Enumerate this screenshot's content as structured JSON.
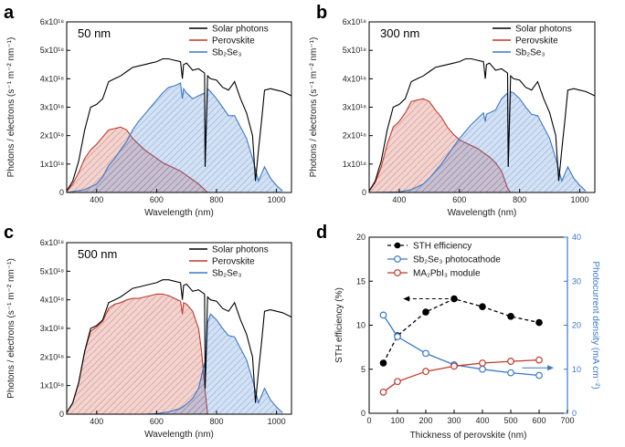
{
  "chart_data": [
    {
      "panel": "a",
      "type": "area",
      "label": "50 nm",
      "xlabel": "Wavelength (nm)",
      "ylabel": "Photons / electrons (s⁻¹ m⁻² nm⁻¹)",
      "xlim": [
        300,
        1050
      ],
      "ylim": [
        0,
        6
      ],
      "xticks": [
        "400",
        "600",
        "800",
        "1000"
      ],
      "yticks": [
        "0",
        "1x10¹⁸",
        "2x10¹⁸",
        "3x10¹⁸",
        "4x10¹⁸",
        "5x10¹⁸",
        "6x10¹⁸"
      ],
      "legend": [
        "Solar photons",
        "Perovskite",
        "Sb₂Se₃"
      ],
      "series": [
        {
          "name": "Solar photons",
          "color": "#000000",
          "kind": "line",
          "x": [
            300,
            320,
            340,
            360,
            380,
            400,
            420,
            440,
            460,
            480,
            500,
            520,
            540,
            560,
            580,
            600,
            620,
            640,
            660,
            680,
            686,
            690,
            700,
            720,
            740,
            760,
            762,
            770,
            780,
            800,
            820,
            840,
            860,
            880,
            900,
            920,
            930,
            940,
            950,
            960,
            980,
            1000,
            1020,
            1050
          ],
          "y": [
            0.05,
            0.4,
            1.1,
            2.2,
            3.0,
            3.1,
            3.3,
            3.9,
            4.0,
            4.1,
            4.25,
            4.4,
            4.45,
            4.5,
            4.55,
            4.6,
            4.7,
            4.7,
            4.65,
            4.6,
            4.0,
            4.5,
            4.55,
            4.3,
            4.35,
            4.2,
            0.9,
            4.1,
            4.0,
            3.95,
            3.7,
            3.6,
            3.9,
            3.3,
            2.8,
            2.0,
            0.4,
            1.5,
            2.5,
            3.6,
            3.65,
            3.6,
            3.55,
            3.4
          ]
        },
        {
          "name": "Perovskite",
          "color": "#c0392b",
          "kind": "area",
          "x": [
            300,
            320,
            340,
            360,
            380,
            400,
            420,
            440,
            460,
            480,
            500,
            520,
            540,
            560,
            580,
            600,
            620,
            640,
            660,
            680,
            700,
            720,
            740,
            760,
            770
          ],
          "y": [
            0.05,
            0.3,
            0.7,
            1.2,
            1.5,
            1.7,
            1.95,
            2.2,
            2.25,
            2.3,
            2.2,
            1.9,
            1.7,
            1.5,
            1.35,
            1.2,
            1.05,
            0.95,
            0.85,
            0.75,
            0.6,
            0.45,
            0.3,
            0.1,
            0
          ]
        },
        {
          "name": "Sb₂Se₃",
          "color": "#3a78c8",
          "kind": "area",
          "x": [
            300,
            360,
            400,
            420,
            440,
            460,
            480,
            500,
            520,
            540,
            560,
            580,
            600,
            620,
            640,
            660,
            680,
            686,
            690,
            700,
            720,
            740,
            760,
            762,
            770,
            780,
            800,
            820,
            840,
            860,
            880,
            900,
            920,
            940,
            960,
            980,
            1000,
            1020
          ],
          "y": [
            0,
            0.1,
            0.3,
            0.55,
            0.95,
            1.2,
            1.5,
            1.8,
            2.2,
            2.5,
            2.75,
            3.0,
            3.25,
            3.5,
            3.7,
            3.75,
            3.85,
            3.3,
            3.65,
            3.5,
            3.3,
            3.4,
            3.5,
            0.9,
            3.65,
            3.55,
            3.3,
            3.0,
            2.7,
            2.7,
            2.3,
            1.9,
            1.2,
            0.4,
            0.9,
            0.5,
            0.25,
            0.05
          ]
        }
      ]
    },
    {
      "panel": "b",
      "type": "area",
      "label": "300 nm",
      "xlabel": "Wavelength (nm)",
      "ylabel": "Photons / electrons (s⁻¹ m⁻² nm⁻¹)",
      "xlim": [
        300,
        1050
      ],
      "ylim": [
        0,
        6
      ],
      "xticks": [
        "400",
        "600",
        "800",
        "1000"
      ],
      "yticks": [
        "0",
        "1x10¹⁸",
        "2x10¹⁸",
        "3x10¹⁸",
        "4x10¹⁸",
        "5x10¹⁸",
        "6x10¹⁸"
      ],
      "legend": [
        "Solar photons",
        "Perovskite",
        "Sb₂Se₃"
      ],
      "series": [
        {
          "name": "Solar photons",
          "color": "#000000",
          "kind": "line",
          "x": [
            300,
            320,
            340,
            360,
            380,
            400,
            420,
            440,
            460,
            480,
            500,
            520,
            540,
            560,
            580,
            600,
            620,
            640,
            660,
            680,
            686,
            690,
            700,
            720,
            740,
            760,
            762,
            770,
            780,
            800,
            820,
            840,
            860,
            880,
            900,
            920,
            930,
            940,
            950,
            960,
            980,
            1000,
            1020,
            1050
          ],
          "y": [
            0.05,
            0.4,
            1.1,
            2.2,
            3.0,
            3.1,
            3.3,
            3.9,
            4.0,
            4.1,
            4.25,
            4.4,
            4.45,
            4.5,
            4.55,
            4.6,
            4.7,
            4.7,
            4.65,
            4.6,
            4.0,
            4.5,
            4.55,
            4.3,
            4.35,
            4.2,
            0.9,
            4.1,
            4.0,
            3.95,
            3.7,
            3.6,
            3.9,
            3.3,
            2.8,
            2.0,
            0.4,
            1.5,
            2.5,
            3.6,
            3.65,
            3.6,
            3.55,
            3.4
          ]
        },
        {
          "name": "Perovskite",
          "color": "#c0392b",
          "kind": "area",
          "x": [
            300,
            320,
            340,
            360,
            380,
            400,
            420,
            440,
            460,
            480,
            500,
            520,
            540,
            560,
            580,
            600,
            620,
            640,
            660,
            680,
            700,
            720,
            740,
            760,
            770
          ],
          "y": [
            0.05,
            0.35,
            0.9,
            1.7,
            2.3,
            2.5,
            2.8,
            3.2,
            3.25,
            3.3,
            3.2,
            2.9,
            2.65,
            2.3,
            2.05,
            1.85,
            1.75,
            1.65,
            1.55,
            1.4,
            1.25,
            1.05,
            0.75,
            0.15,
            0
          ]
        },
        {
          "name": "Sb₂Se₃",
          "color": "#3a78c8",
          "kind": "area",
          "x": [
            300,
            400,
            440,
            480,
            500,
            520,
            540,
            560,
            580,
            600,
            620,
            640,
            660,
            680,
            686,
            690,
            700,
            720,
            740,
            760,
            762,
            770,
            780,
            800,
            820,
            840,
            860,
            880,
            900,
            920,
            940,
            960,
            980,
            1000,
            1020
          ],
          "y": [
            0,
            0.02,
            0.1,
            0.3,
            0.5,
            0.75,
            1.0,
            1.3,
            1.6,
            1.9,
            2.15,
            2.4,
            2.6,
            2.8,
            2.5,
            2.75,
            2.8,
            2.9,
            3.3,
            3.5,
            0.9,
            3.55,
            3.5,
            3.3,
            3.0,
            2.75,
            2.7,
            2.3,
            1.9,
            1.2,
            0.4,
            0.9,
            0.5,
            0.25,
            0.05
          ]
        }
      ]
    },
    {
      "panel": "c",
      "type": "area",
      "label": "500 nm",
      "xlabel": "Wavelength (nm)",
      "ylabel": "Photons / electrons (s⁻¹ m⁻² nm⁻¹)",
      "xlim": [
        300,
        1050
      ],
      "ylim": [
        0,
        6
      ],
      "xticks": [
        "400",
        "600",
        "800",
        "1000"
      ],
      "yticks": [
        "0",
        "1x10¹⁸",
        "2x10¹⁸",
        "3x10¹⁸",
        "4x10¹⁸",
        "5x10¹⁸",
        "6x10¹⁸"
      ],
      "legend": [
        "Solar photons",
        "Perovskite",
        "Sb₂Se₃"
      ],
      "series": [
        {
          "name": "Solar photons",
          "color": "#000000",
          "kind": "line",
          "x": [
            300,
            320,
            340,
            360,
            380,
            400,
            420,
            440,
            460,
            480,
            500,
            520,
            540,
            560,
            580,
            600,
            620,
            640,
            660,
            680,
            686,
            690,
            700,
            720,
            740,
            760,
            762,
            770,
            780,
            800,
            820,
            840,
            860,
            880,
            900,
            920,
            930,
            940,
            950,
            960,
            980,
            1000,
            1020,
            1050
          ],
          "y": [
            0.05,
            0.4,
            1.1,
            2.2,
            3.0,
            3.1,
            3.3,
            3.9,
            4.0,
            4.1,
            4.25,
            4.4,
            4.45,
            4.5,
            4.55,
            4.6,
            4.7,
            4.7,
            4.65,
            4.6,
            4.0,
            4.5,
            4.55,
            4.3,
            4.35,
            4.2,
            0.9,
            4.1,
            4.0,
            3.95,
            3.7,
            3.6,
            3.9,
            3.3,
            2.8,
            2.0,
            0.4,
            1.5,
            2.5,
            3.6,
            3.65,
            3.6,
            3.55,
            3.4
          ]
        },
        {
          "name": "Perovskite",
          "color": "#c0392b",
          "kind": "area",
          "x": [
            300,
            320,
            340,
            360,
            380,
            400,
            420,
            440,
            460,
            480,
            500,
            520,
            540,
            560,
            580,
            600,
            620,
            640,
            660,
            680,
            686,
            690,
            700,
            720,
            740,
            750,
            760,
            770
          ],
          "y": [
            0.05,
            0.4,
            1.1,
            2.2,
            2.9,
            3.05,
            3.25,
            3.7,
            3.85,
            3.9,
            4.0,
            4.05,
            4.05,
            4.1,
            4.15,
            4.2,
            4.2,
            4.15,
            4.05,
            3.95,
            3.5,
            3.9,
            3.85,
            3.6,
            3.0,
            2.2,
            1.0,
            0
          ]
        },
        {
          "name": "Sb₂Se₃",
          "color": "#3a78c8",
          "kind": "area",
          "x": [
            300,
            560,
            600,
            640,
            680,
            700,
            720,
            740,
            760,
            762,
            770,
            780,
            800,
            820,
            840,
            860,
            880,
            900,
            920,
            940,
            960,
            980,
            1000,
            1020
          ],
          "y": [
            0,
            0,
            0.02,
            0.08,
            0.2,
            0.35,
            0.55,
            0.9,
            1.8,
            0.9,
            3.2,
            3.5,
            3.3,
            3.0,
            2.75,
            2.7,
            2.3,
            1.9,
            1.2,
            0.4,
            0.9,
            0.5,
            0.25,
            0.05
          ]
        }
      ]
    },
    {
      "panel": "d",
      "type": "line",
      "xlabel": "Thickness of perovskite (nm)",
      "ylabel": "STH efficiency (%)",
      "y2label": "Photocurrent density (mA cm⁻²)",
      "xlim": [
        0,
        700
      ],
      "ylim": [
        0,
        20
      ],
      "y2lim": [
        0,
        40
      ],
      "xticks": [
        "0",
        "100",
        "200",
        "300",
        "400",
        "500",
        "600",
        "700"
      ],
      "yticks": [
        "0",
        "5",
        "10",
        "15",
        "20"
      ],
      "y2ticks": [
        "0",
        "10",
        "20",
        "30",
        "40"
      ],
      "x": [
        50,
        100,
        200,
        300,
        400,
        500,
        600
      ],
      "series": [
        {
          "name": "STH efficiency",
          "axis": "left",
          "color": "#000000",
          "dashed": true,
          "marker": "filled",
          "values": [
            5.7,
            8.8,
            11.5,
            13.0,
            12.1,
            11.0,
            10.3
          ]
        },
        {
          "name": "Sb₂Se₃ photocathode",
          "axis": "right",
          "color": "#3a78c8",
          "dashed": false,
          "marker": "open",
          "values": [
            22.3,
            17.4,
            13.6,
            11.0,
            10.0,
            9.2,
            8.6
          ]
        },
        {
          "name": "MA₂PbI₃ module",
          "axis": "right",
          "color": "#c0392b",
          "dashed": false,
          "marker": "open",
          "values": [
            4.8,
            7.2,
            9.5,
            10.7,
            11.4,
            11.8,
            12.1
          ]
        }
      ]
    }
  ]
}
